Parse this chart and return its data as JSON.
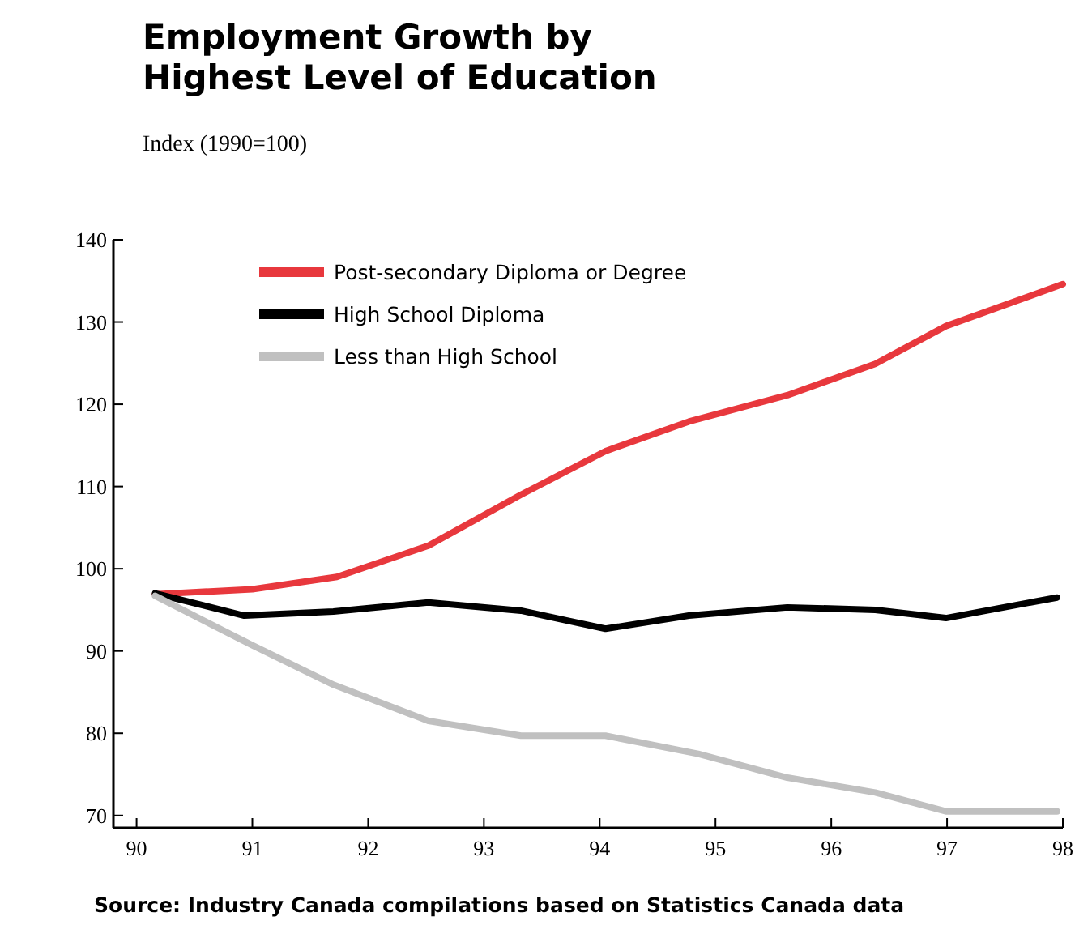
{
  "chart_data": {
    "type": "line",
    "title": "Employment Growth by\nHighest Level of Education",
    "subtitle": "Index (1990=100)",
    "xlim": [
      89.8,
      98
    ],
    "xticks": [
      {
        "value": 90,
        "label": "90"
      },
      {
        "value": 91,
        "label": "91"
      },
      {
        "value": 92,
        "label": "92"
      },
      {
        "value": 93,
        "label": "93"
      },
      {
        "value": 94,
        "label": "94"
      },
      {
        "value": 95,
        "label": "95"
      },
      {
        "value": 96,
        "label": "96"
      },
      {
        "value": 97,
        "label": "97"
      },
      {
        "value": 98,
        "label": "98"
      }
    ],
    "ylim": [
      68.5,
      140
    ],
    "yticks": [
      70,
      80,
      90,
      100,
      110,
      120,
      130,
      140
    ],
    "grid": false,
    "legend": "top left",
    "marker": "none",
    "line_style": "solid",
    "series": [
      {
        "name": "Post-secondary Diploma or Degree",
        "color": "#e8383d",
        "x": [
          90.16,
          91,
          91.73,
          92.52,
          93.32,
          94.05,
          94.77,
          95.62,
          96.38,
          96.99,
          98
        ],
        "values": [
          96.9,
          97.5,
          99,
          102.8,
          109,
          114.3,
          117.9,
          121.1,
          124.9,
          129.5,
          134.6
        ]
      },
      {
        "name": "High School Diploma",
        "color": "#000000",
        "x": [
          90.16,
          90.93,
          91.7,
          92.52,
          93.32,
          94.05,
          94.77,
          95.62,
          96.38,
          96.99,
          97.95
        ],
        "values": [
          97,
          94.3,
          94.8,
          95.9,
          94.9,
          92.7,
          94.3,
          95.3,
          95,
          94,
          96.5
        ]
      },
      {
        "name": "Less than High School",
        "color": "#c0c0c0",
        "x": [
          90.16,
          91,
          91.7,
          92.52,
          93.32,
          94.05,
          94.85,
          95.62,
          96.38,
          96.99,
          97.95
        ],
        "values": [
          96.7,
          90.7,
          85.9,
          81.5,
          79.7,
          79.7,
          77.5,
          74.6,
          72.8,
          70.5,
          70.5
        ]
      }
    ],
    "annotations": [
      "Source: Industry Canada compilations based on Statistics Canada data"
    ]
  }
}
